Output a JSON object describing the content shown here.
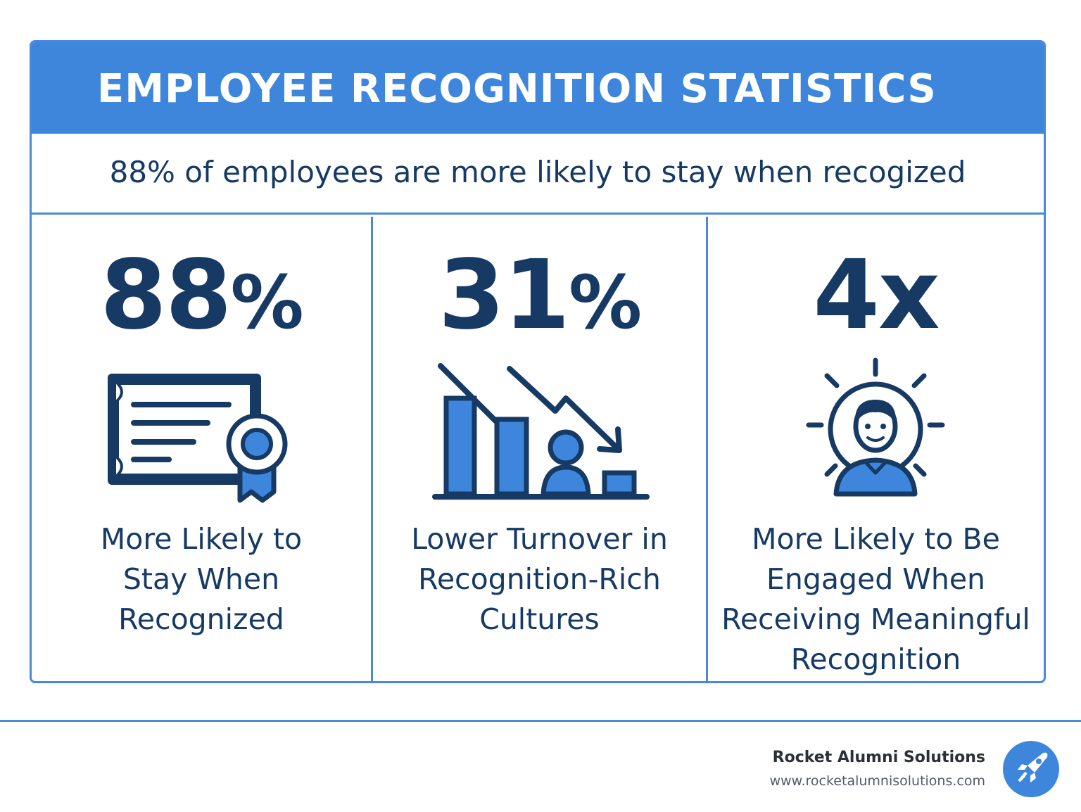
{
  "header": {
    "title": "EMPLOYEE RECOGNITION STATISTICS",
    "subtitle": "88% of employees are more likely to stay when recogized"
  },
  "stats": [
    {
      "number": "88",
      "suffix": "%",
      "icon": "certificate-ribbon-icon",
      "label_lines": [
        "More Likely to",
        "Stay When",
        "Recognized"
      ]
    },
    {
      "number": "31",
      "suffix": "%",
      "icon": "declining-bar-chart-icon",
      "label_lines": [
        "Lower Turnover in",
        "Recognition-Rich",
        "Cultures"
      ]
    },
    {
      "number": "4x",
      "suffix": "",
      "icon": "glowing-person-icon",
      "label_lines": [
        "More Likely to Be",
        "Engaged When",
        "Receiving Meaningful",
        "Recognition"
      ]
    }
  ],
  "footer": {
    "brand_name": "Rocket Alumni Solutions",
    "brand_url": "www.rocketalumnisolutions.com",
    "logo_icon": "rocket-icon"
  },
  "colors": {
    "primary_blue": "#3d86dc",
    "dark_navy": "#163a64",
    "white": "#ffffff"
  }
}
